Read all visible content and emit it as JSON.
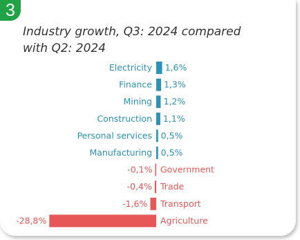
{
  "badge": "3",
  "title": "Industry growth, Q3: 2024 compared with Q2: 2024",
  "colors": {
    "positive": "#2a93b6",
    "negative": "#e85757",
    "badge": "#21a345"
  },
  "chart_data": {
    "type": "bar",
    "orientation": "horizontal",
    "title": "Industry growth, Q3: 2024 compared with Q2: 2024",
    "categories": [
      "Electricity",
      "Finance",
      "Mining",
      "Construction",
      "Personal services",
      "Manufacturing",
      "Government",
      "Trade",
      "Transport",
      "Agriculture"
    ],
    "values": [
      1.6,
      1.3,
      1.2,
      1.1,
      0.5,
      0.5,
      -0.1,
      -0.4,
      -1.6,
      -28.8
    ],
    "value_labels": [
      "1,6%",
      "1,3%",
      "1,2%",
      "1,1%",
      "0,5%",
      "0,5%",
      "-0,1%",
      "-0,4%",
      "-1,6%",
      "-28,8%"
    ],
    "unit": "%",
    "grid": false,
    "legend": "none"
  }
}
